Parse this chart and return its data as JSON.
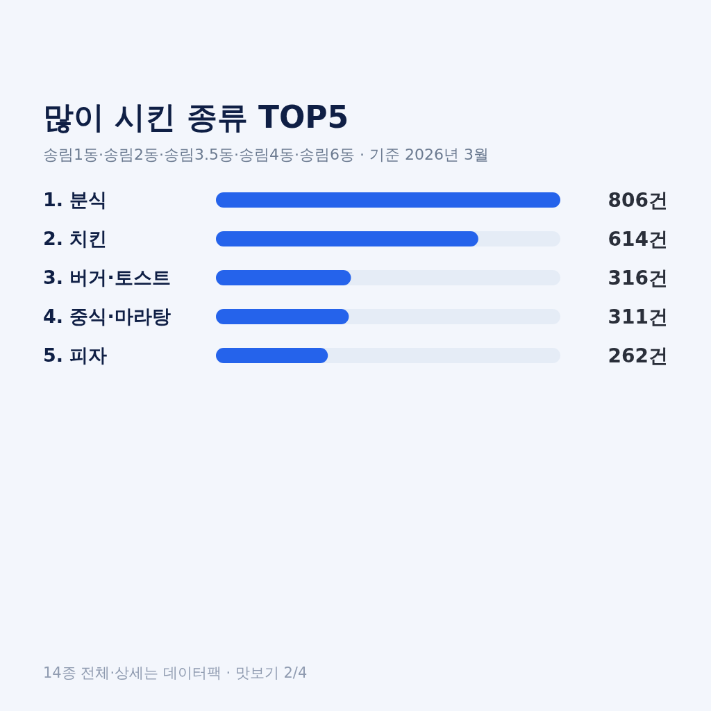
{
  "chart_data": {
    "type": "bar",
    "orientation": "horizontal",
    "title": "많이 시킨 종류 TOP5",
    "subtitle": "송림1동·송림2동·송림3.5동·송림4동·송림6동 · 기준 2026년 3월",
    "categories": [
      "1. 분식",
      "2. 치킨",
      "3. 버거·토스트",
      "4. 중식·마라탕",
      "5. 피자"
    ],
    "values": [
      806,
      614,
      316,
      311,
      262
    ],
    "value_labels": [
      "806건",
      "614건",
      "316건",
      "311건",
      "262건"
    ],
    "color": "#2563eb",
    "annotations": [
      "14종 전체·상세는 데이터팩 · 맛보기 2/4"
    ]
  }
}
